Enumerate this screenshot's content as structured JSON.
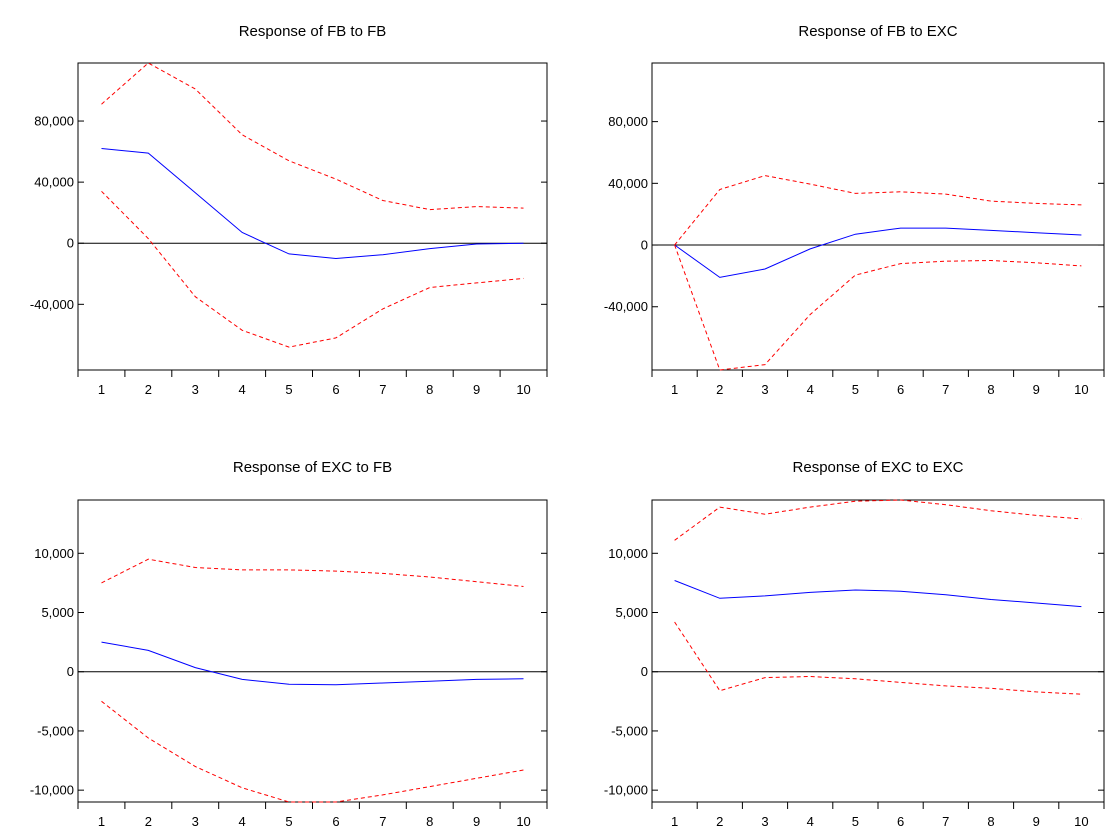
{
  "colors": {
    "response": "#0000ff",
    "band": "#ff0000",
    "axis": "#000000",
    "zero_line": "#000000"
  },
  "chart_data": [
    {
      "type": "line",
      "title": "Response of FB to FB",
      "x": [
        1,
        2,
        3,
        4,
        5,
        6,
        7,
        8,
        9,
        10
      ],
      "ylim": [
        -83000,
        118000
      ],
      "yticks": [
        80000,
        40000,
        0,
        -40000
      ],
      "ytick_labels": [
        "80,000",
        "40,000",
        "0",
        "-40,000"
      ],
      "xtick_labels": [
        "1",
        "2",
        "3",
        "4",
        "5",
        "6",
        "7",
        "8",
        "9",
        "10"
      ],
      "zero_line": true,
      "series": [
        {
          "role": "response",
          "values": [
            62000,
            59000,
            33000,
            7000,
            -7000,
            -10000,
            -7500,
            -3500,
            -500,
            0
          ]
        },
        {
          "role": "upper",
          "values": [
            91000,
            118000,
            101000,
            71000,
            54000,
            42000,
            28000,
            22000,
            24000,
            23000
          ]
        },
        {
          "role": "lower",
          "values": [
            34000,
            3000,
            -35000,
            -57000,
            -68000,
            -62000,
            -43000,
            -29000,
            -26000,
            -23000
          ]
        }
      ]
    },
    {
      "type": "line",
      "title": "Response of FB to EXC",
      "x": [
        1,
        2,
        3,
        4,
        5,
        6,
        7,
        8,
        9,
        10
      ],
      "ylim": [
        -81000,
        118000
      ],
      "yticks": [
        80000,
        40000,
        0,
        -40000
      ],
      "ytick_labels": [
        "80,000",
        "40,000",
        "0",
        "-40,000"
      ],
      "xtick_labels": [
        "1",
        "2",
        "3",
        "4",
        "5",
        "6",
        "7",
        "8",
        "9",
        "10"
      ],
      "zero_line": true,
      "series": [
        {
          "role": "response",
          "values": [
            0,
            -21000,
            -15500,
            -2500,
            7000,
            11000,
            11000,
            9500,
            8000,
            6500
          ]
        },
        {
          "role": "upper",
          "values": [
            0,
            36000,
            45000,
            39500,
            33500,
            34500,
            33000,
            28500,
            27000,
            26000
          ]
        },
        {
          "role": "lower",
          "values": [
            0,
            -81000,
            -77500,
            -45000,
            -19500,
            -12000,
            -10500,
            -10000,
            -11500,
            -13500
          ]
        }
      ]
    },
    {
      "type": "line",
      "title": "Response of EXC to FB",
      "x": [
        1,
        2,
        3,
        4,
        5,
        6,
        7,
        8,
        9,
        10
      ],
      "ylim": [
        -11000,
        14500
      ],
      "yticks": [
        10000,
        5000,
        0,
        -5000,
        -10000
      ],
      "ytick_labels": [
        "10,000",
        "5,000",
        "0",
        "-5,000",
        "-10,000"
      ],
      "xtick_labels": [
        "1",
        "2",
        "3",
        "4",
        "5",
        "6",
        "7",
        "8",
        "9",
        "10"
      ],
      "zero_line": true,
      "series": [
        {
          "role": "response",
          "values": [
            2500,
            1800,
            350,
            -650,
            -1050,
            -1100,
            -950,
            -800,
            -650,
            -600
          ]
        },
        {
          "role": "upper",
          "values": [
            7500,
            9500,
            8800,
            8600,
            8600,
            8500,
            8300,
            8000,
            7600,
            7200
          ]
        },
        {
          "role": "lower",
          "values": [
            -2500,
            -5600,
            -8000,
            -9800,
            -11000,
            -11000,
            -10400,
            -9700,
            -9000,
            -8300
          ]
        }
      ]
    },
    {
      "type": "line",
      "title": "Response of EXC to EXC",
      "x": [
        1,
        2,
        3,
        4,
        5,
        6,
        7,
        8,
        9,
        10
      ],
      "ylim": [
        -11000,
        14500
      ],
      "yticks": [
        10000,
        5000,
        0,
        -5000,
        -10000
      ],
      "ytick_labels": [
        "10,000",
        "5,000",
        "0",
        "-5,000",
        "-10,000"
      ],
      "xtick_labels": [
        "1",
        "2",
        "3",
        "4",
        "5",
        "6",
        "7",
        "8",
        "9",
        "10"
      ],
      "zero_line": true,
      "series": [
        {
          "role": "response",
          "values": [
            7700,
            6200,
            6400,
            6700,
            6900,
            6800,
            6500,
            6100,
            5800,
            5500
          ]
        },
        {
          "role": "upper",
          "values": [
            11100,
            13900,
            13300,
            13900,
            14400,
            14500,
            14100,
            13600,
            13200,
            12900
          ]
        },
        {
          "role": "lower",
          "values": [
            4200,
            -1600,
            -500,
            -400,
            -600,
            -900,
            -1200,
            -1400,
            -1700,
            -1900
          ]
        }
      ]
    }
  ]
}
